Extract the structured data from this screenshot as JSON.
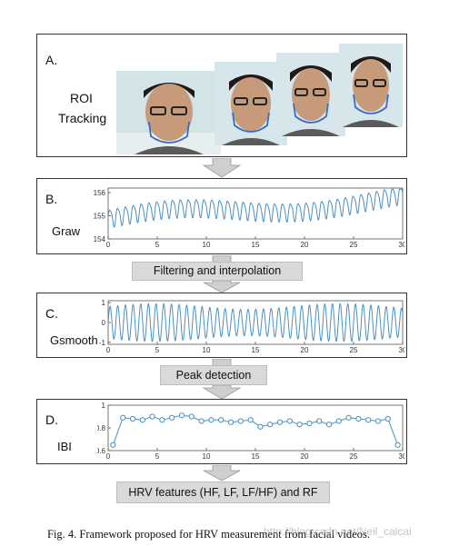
{
  "panels": {
    "a": {
      "letter": "A.",
      "title_line1": "ROI",
      "title_line2": "Tracking"
    },
    "b": {
      "letter": "B.",
      "signal": "Graw"
    },
    "c": {
      "letter": "C.",
      "signal": "Gsmooth"
    },
    "d": {
      "letter": "D.",
      "signal": "IBI"
    }
  },
  "steps": {
    "filtering": "Filtering and interpolation",
    "peak": "Peak detection",
    "hrv": "HRV features (HF, LF, LF/HF) and RF"
  },
  "caption": "Fig. 4.  Framework proposed for HRV measurement from facial videos.",
  "watermark": "http://blog.csdn.net/Neil_calcai",
  "chart_data": [
    {
      "type": "line",
      "series": [
        {
          "color": "#4a90c0"
        }
      ],
      "x_ticks": [
        0,
        5,
        10,
        15,
        20,
        25,
        30
      ],
      "y_ticks": [
        154,
        155,
        156
      ],
      "xlim": [
        0,
        30
      ],
      "ylim": [
        154,
        156.2
      ]
    },
    {
      "type": "line",
      "series": [
        {
          "color": "#4a90c0"
        }
      ],
      "x_ticks": [
        0,
        5,
        10,
        15,
        20,
        25,
        30
      ],
      "y_ticks": [
        1,
        0,
        -1
      ],
      "xlim": [
        0,
        30
      ],
      "ylim": [
        -1.1,
        1.1
      ]
    },
    {
      "type": "line",
      "series": [
        {
          "color": "#4a90c0",
          "x": [
            0.5,
            1.5,
            2.5,
            3.5,
            4.5,
            5.5,
            6.5,
            7.5,
            8.5,
            9.5,
            10.5,
            11.5,
            12.5,
            13.5,
            14.5,
            15.5,
            16.5,
            17.5,
            18.5,
            19.5,
            20.5,
            21.5,
            22.5,
            23.5,
            24.5,
            25.5,
            26.5,
            27.5,
            28.5,
            29.5
          ],
          "values": [
            0.65,
            0.89,
            0.88,
            0.87,
            0.9,
            0.87,
            0.89,
            0.91,
            0.9,
            0.86,
            0.87,
            0.87,
            0.85,
            0.86,
            0.87,
            0.81,
            0.83,
            0.85,
            0.86,
            0.83,
            0.84,
            0.86,
            0.83,
            0.86,
            0.89,
            0.88,
            0.87,
            0.86,
            0.88,
            0.65
          ]
        }
      ],
      "x_ticks": [
        0,
        5,
        10,
        15,
        20,
        25,
        30
      ],
      "y_ticks": [
        0.6,
        0.8,
        1
      ],
      "xlim": [
        0,
        30
      ],
      "ylim": [
        0.6,
        1.0
      ]
    }
  ]
}
